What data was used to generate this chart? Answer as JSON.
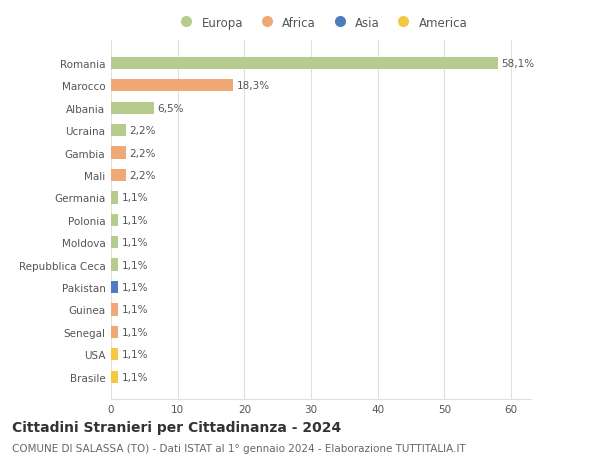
{
  "countries": [
    "Romania",
    "Marocco",
    "Albania",
    "Ucraina",
    "Gambia",
    "Mali",
    "Germania",
    "Polonia",
    "Moldova",
    "Repubblica Ceca",
    "Pakistan",
    "Guinea",
    "Senegal",
    "USA",
    "Brasile"
  ],
  "values": [
    58.1,
    18.3,
    6.5,
    2.2,
    2.2,
    2.2,
    1.1,
    1.1,
    1.1,
    1.1,
    1.1,
    1.1,
    1.1,
    1.1,
    1.1
  ],
  "labels": [
    "58,1%",
    "18,3%",
    "6,5%",
    "2,2%",
    "2,2%",
    "2,2%",
    "1,1%",
    "1,1%",
    "1,1%",
    "1,1%",
    "1,1%",
    "1,1%",
    "1,1%",
    "1,1%",
    "1,1%"
  ],
  "continents": [
    "Europa",
    "Africa",
    "Europa",
    "Europa",
    "Africa",
    "Africa",
    "Europa",
    "Europa",
    "Europa",
    "Europa",
    "Asia",
    "Africa",
    "Africa",
    "America",
    "America"
  ],
  "continent_colors": {
    "Europa": "#b5cc8e",
    "Africa": "#f0a875",
    "Asia": "#4f7bbf",
    "America": "#f5c842"
  },
  "legend_order": [
    "Europa",
    "Africa",
    "Asia",
    "America"
  ],
  "title": "Cittadini Stranieri per Cittadinanza - 2024",
  "subtitle": "COMUNE DI SALASSA (TO) - Dati ISTAT al 1° gennaio 2024 - Elaborazione TUTTITALIA.IT",
  "xlim": [
    0,
    63
  ],
  "xticks": [
    0,
    10,
    20,
    30,
    40,
    50,
    60
  ],
  "bg_color": "#ffffff",
  "grid_color": "#e0e0e0",
  "title_fontsize": 10,
  "subtitle_fontsize": 7.5,
  "label_fontsize": 7.5,
  "tick_fontsize": 7.5,
  "legend_fontsize": 8.5
}
